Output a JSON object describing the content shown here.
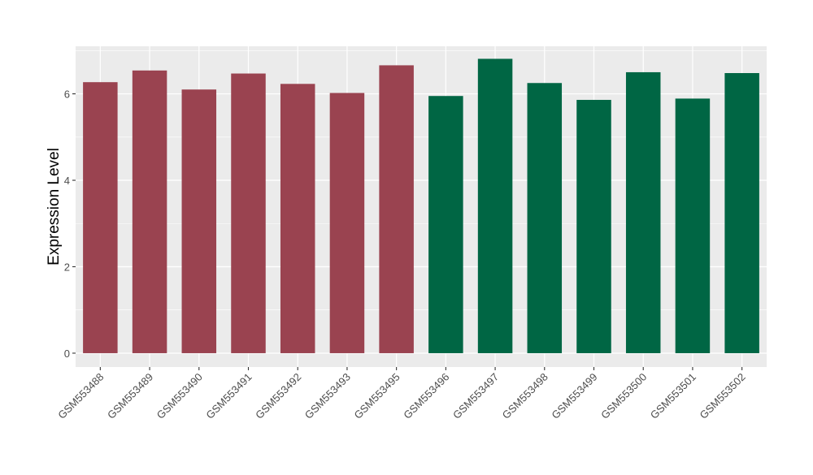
{
  "chart_data": {
    "type": "bar",
    "categories": [
      "GSM553488",
      "GSM553489",
      "GSM553490",
      "GSM553491",
      "GSM553492",
      "GSM553493",
      "GSM553495",
      "GSM553496",
      "GSM553497",
      "GSM553498",
      "GSM553499",
      "GSM553500",
      "GSM553501",
      "GSM553502"
    ],
    "values": [
      6.27,
      6.54,
      6.1,
      6.47,
      6.23,
      6.02,
      6.66,
      5.95,
      6.81,
      6.25,
      5.86,
      6.5,
      5.89,
      6.48
    ],
    "bar_colors": [
      "#9a4350",
      "#9a4350",
      "#9a4350",
      "#9a4350",
      "#9a4350",
      "#9a4350",
      "#9a4350",
      "#006644",
      "#006644",
      "#006644",
      "#006644",
      "#006644",
      "#006644",
      "#006644"
    ],
    "title": "",
    "xlabel": "",
    "ylabel": "Expression Level",
    "ylim": [
      -0.32,
      7.1
    ],
    "yticks": [
      0,
      2,
      4,
      6
    ],
    "ytick_labels": [
      "0",
      "2",
      "4",
      "6"
    ],
    "grid": true,
    "panel_background": "#ebebeb",
    "grid_color": "#ffffff"
  }
}
